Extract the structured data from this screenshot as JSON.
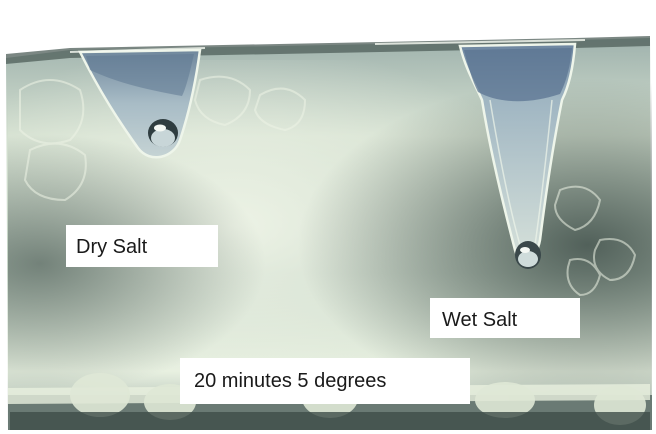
{
  "labels": {
    "dry": "Dry Salt",
    "wet": "Wet Salt",
    "conditions": "20 minutes  5 degrees"
  },
  "colors": {
    "ice_base": "#c9d8c9",
    "ice_light": "#e9f1e2",
    "ice_dark": "#56665e",
    "melt_hole": "#7e94a8",
    "label_bg": "#ffffff"
  }
}
